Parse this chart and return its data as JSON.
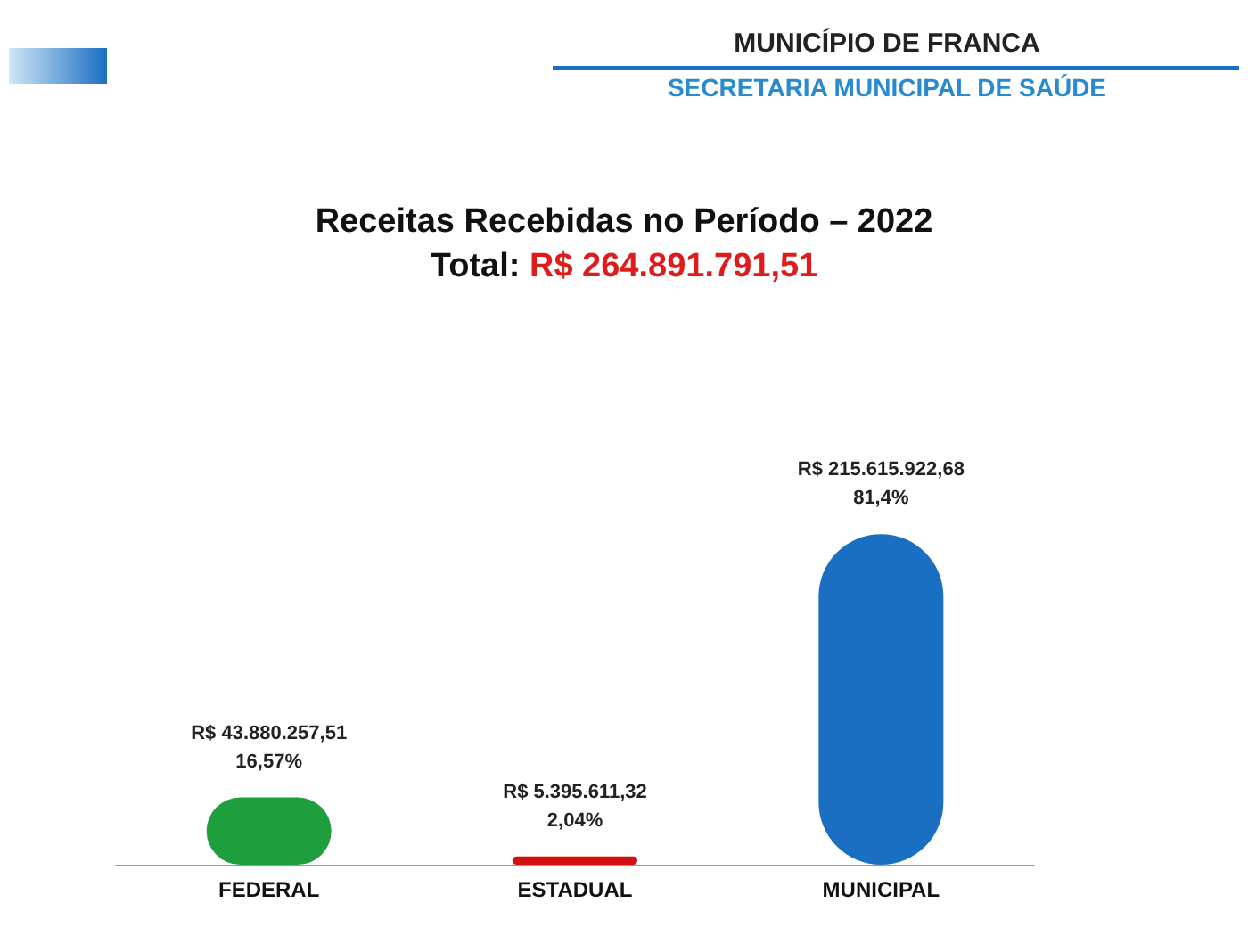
{
  "chart_data": {
    "type": "bar",
    "title": "Receitas Recebidas no Período – 2022",
    "subtitle": "Total: R$ 264.891.791,51",
    "annotations": [
      "MUNICÍPIO DE FRANCA",
      "SECRETARIA MUNICIPAL DE SAÚDE"
    ],
    "categories": [
      "FEDERAL",
      "ESTADUAL",
      "MUNICIPAL"
    ],
    "values": [
      43880257.51,
      5395611.32,
      215615922.68
    ],
    "colors": [
      "#1f9e3e",
      "#d40f0f",
      "#1b6fc2"
    ],
    "value_labels": [
      "R$ 43.880.257,51\n16,57%",
      "R$ 5.395.611,32\n2,04%",
      "R$ 215.615.922,68\n81,4%"
    ]
  }
}
